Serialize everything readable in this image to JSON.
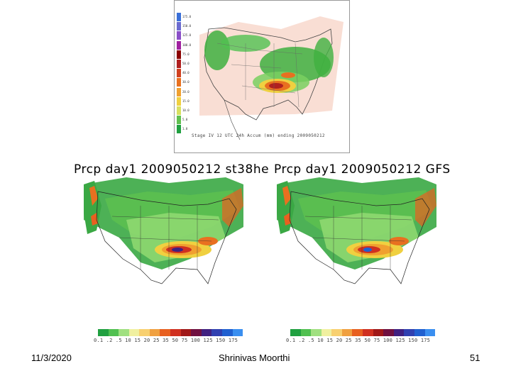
{
  "top_panel": {
    "legend_labels": [
      "175.0",
      "150.0",
      "125.0",
      "100.0",
      "75.0",
      "50.0",
      "40.0",
      "30.0",
      "20.0",
      "15.0",
      "10.0",
      "5.0",
      "1.0"
    ],
    "legend_colors": [
      "#3a6fd8",
      "#6b6bd0",
      "#8a4fc8",
      "#a020a0",
      "#8b0000",
      "#b02020",
      "#d04020",
      "#e87020",
      "#f0a030",
      "#f0d040",
      "#d8e060",
      "#60c050",
      "#20a040"
    ],
    "caption": "Stage IV 12 UTC 24h Accum (mm) ending 2009050212"
  },
  "left_panel": {
    "title": "Prcp day1 2009050212 st38he"
  },
  "right_panel": {
    "title": "Prcp day1 2009050212 GFS"
  },
  "colorbar": {
    "colors": [
      "#20a040",
      "#50c050",
      "#a0e080",
      "#f0f0a0",
      "#f8d070",
      "#f0a040",
      "#e86020",
      "#d03020",
      "#a01818",
      "#701040",
      "#402080",
      "#3040b0",
      "#2060d0",
      "#3a8ff0"
    ],
    "labels": "0.1 .2 .5 10 15 20 25 35 50 75 100 125 150 175"
  },
  "footer": {
    "date": "11/3/2020",
    "author": "Shrinivas Moorthi",
    "page": "51"
  }
}
